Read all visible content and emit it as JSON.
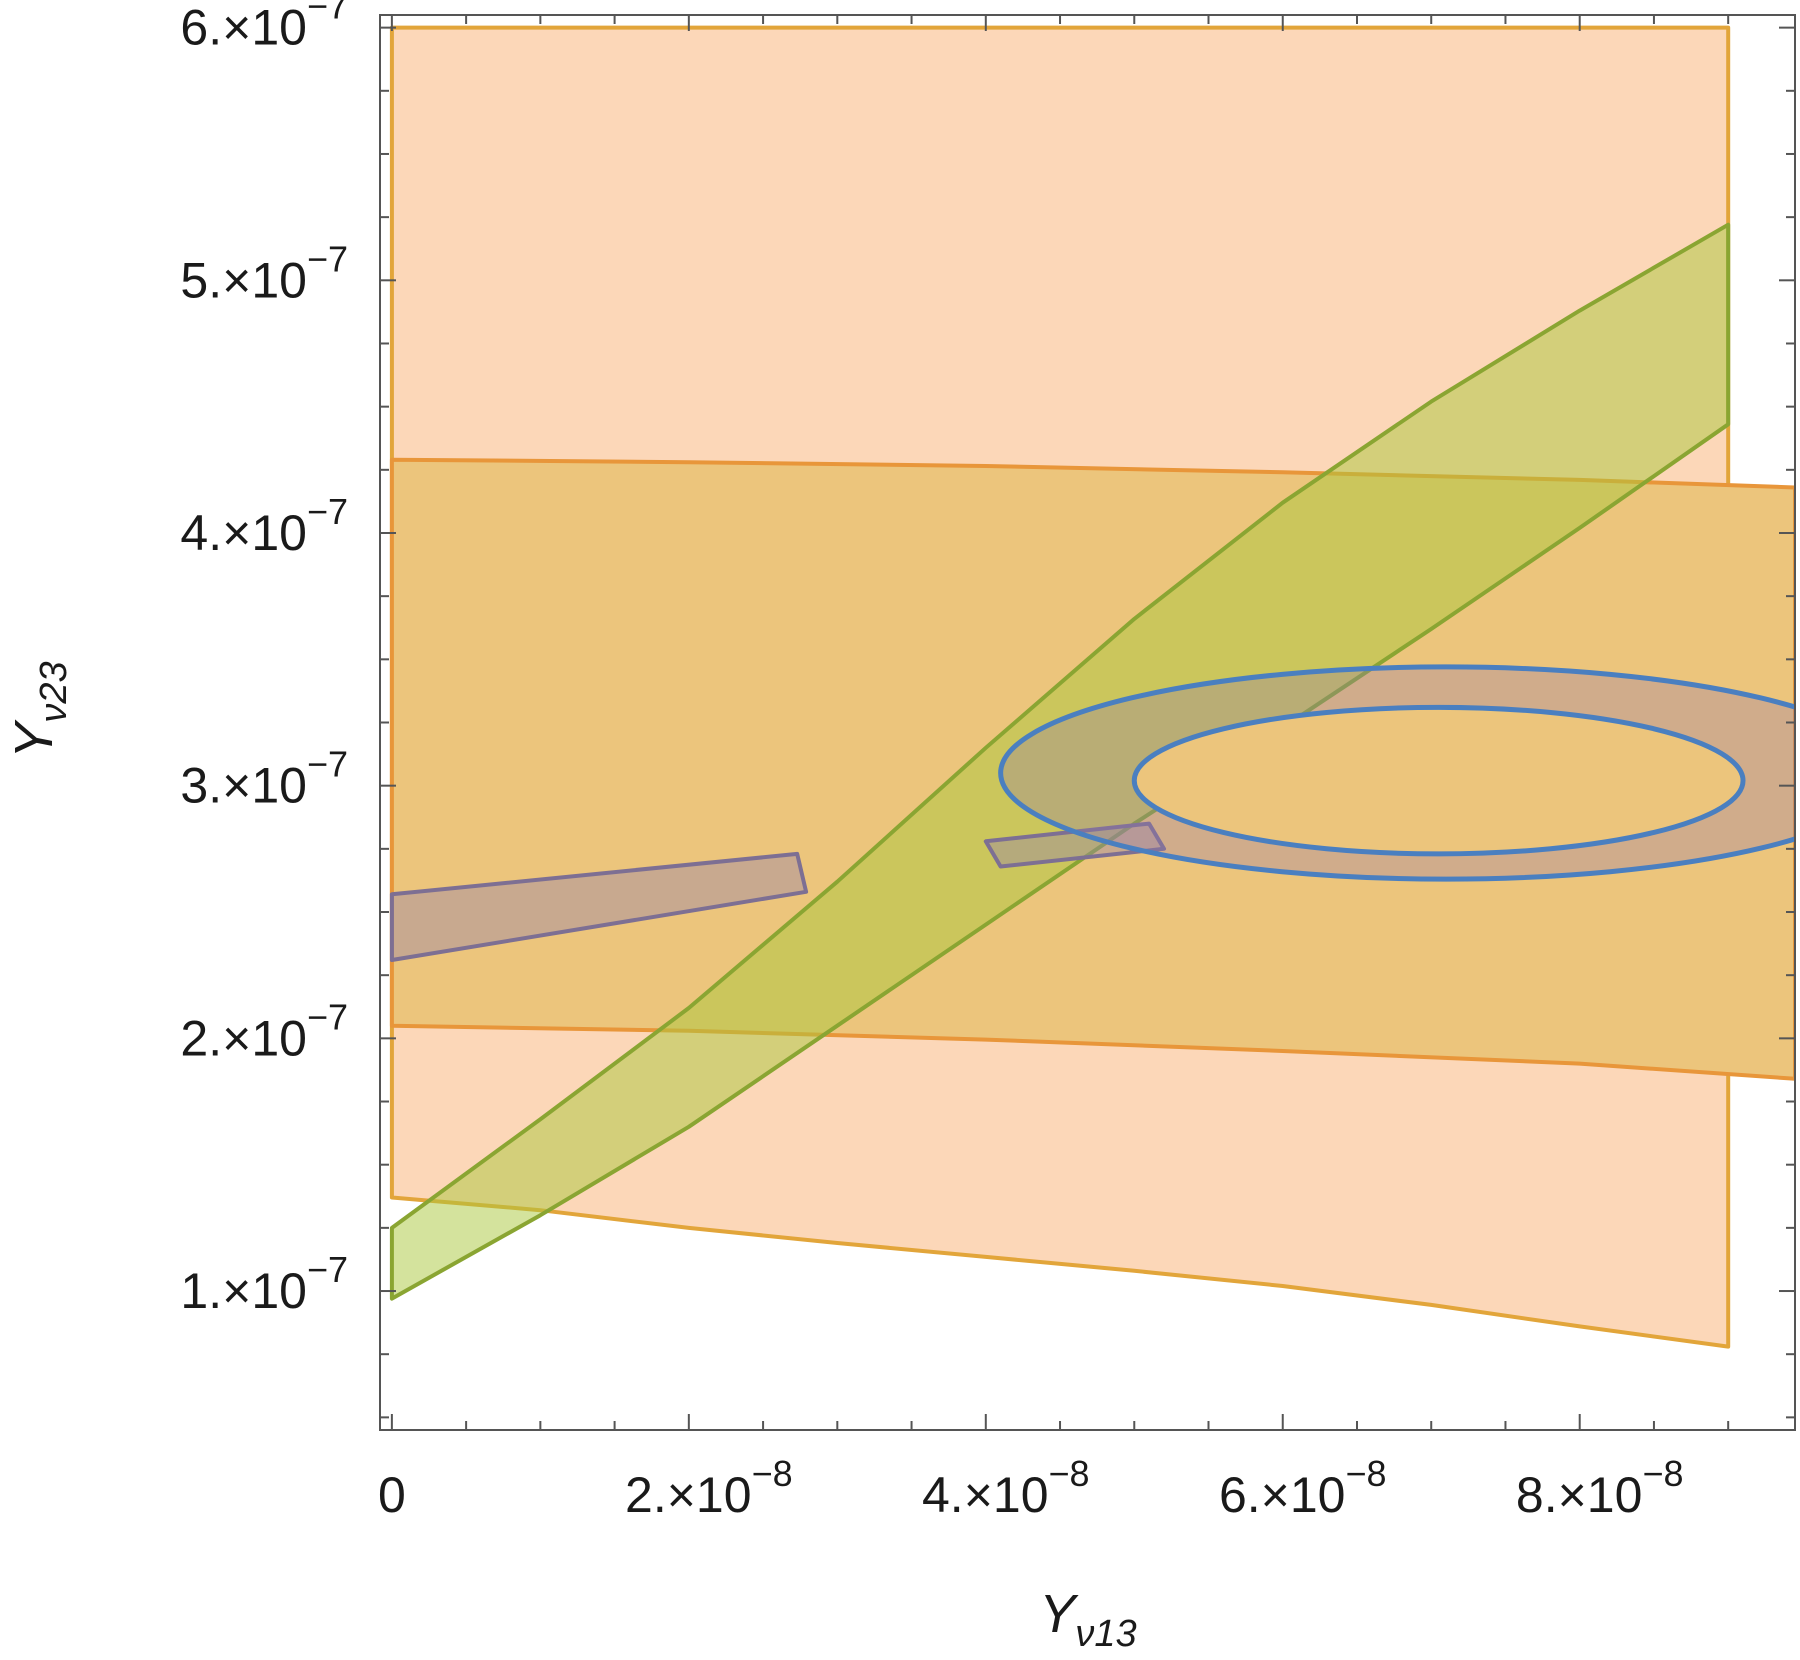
{
  "chart_data": {
    "type": "area",
    "title": "",
    "xlabel": {
      "main": "Y",
      "sub": "ν13"
    },
    "ylabel": {
      "main": "Y",
      "sub": "ν23"
    },
    "xlim": [
      -8e-10,
      9.45e-08
    ],
    "ylim": [
      4.5e-08,
      6.05e-07
    ],
    "grid": false,
    "x_ticks": [
      {
        "value": 0,
        "mantissa": "0",
        "exponent": ""
      },
      {
        "value": 2e-08,
        "mantissa": "2.",
        "exponent": "−8"
      },
      {
        "value": 4e-08,
        "mantissa": "4.",
        "exponent": "−8"
      },
      {
        "value": 6e-08,
        "mantissa": "6.",
        "exponent": "−8"
      },
      {
        "value": 8e-08,
        "mantissa": "8.",
        "exponent": "−8"
      }
    ],
    "y_ticks": [
      {
        "value": 1e-07,
        "mantissa": "1.",
        "exponent": "−7"
      },
      {
        "value": 2e-07,
        "mantissa": "2.",
        "exponent": "−7"
      },
      {
        "value": 3e-07,
        "mantissa": "3.",
        "exponent": "−7"
      },
      {
        "value": 4e-07,
        "mantissa": "4.",
        "exponent": "−7"
      },
      {
        "value": 5e-07,
        "mantissa": "5.",
        "exponent": "−7"
      },
      {
        "value": 6e-07,
        "mantissa": "6.",
        "exponent": "−7"
      }
    ],
    "x_minor_step": 5e-09,
    "y_minor_step": 2.5e-08,
    "regions": [
      {
        "id": "light-orange-region",
        "fill": "#fcd7b8",
        "stroke": "#e2a53a",
        "points": [
          [
            0,
            6e-07
          ],
          [
            9e-08,
            6e-07
          ],
          [
            9e-08,
            7.8e-08
          ],
          [
            8e-08,
            8.6e-08
          ],
          [
            7e-08,
            9.45e-08
          ],
          [
            6e-08,
            1.02e-07
          ],
          [
            5e-08,
            1.08e-07
          ],
          [
            4e-08,
            1.135e-07
          ],
          [
            3e-08,
            1.19e-07
          ],
          [
            2e-08,
            1.25e-07
          ],
          [
            1e-08,
            1.32e-07
          ],
          [
            0,
            1.37e-07
          ]
        ]
      },
      {
        "id": "medium-orange-band",
        "fill": "#ecc57c",
        "stroke": "#e8963a",
        "points": [
          [
            0,
            4.29e-07
          ],
          [
            2e-08,
            4.28e-07
          ],
          [
            4e-08,
            4.265e-07
          ],
          [
            6e-08,
            4.24e-07
          ],
          [
            8e-08,
            4.21e-07
          ],
          [
            9.45e-08,
            4.18e-07
          ],
          [
            9.45e-08,
            1.84e-07
          ],
          [
            8e-08,
            1.9e-07
          ],
          [
            6e-08,
            1.95e-07
          ],
          [
            4e-08,
            1.995e-07
          ],
          [
            2e-08,
            2.03e-07
          ],
          [
            0,
            2.05e-07
          ]
        ]
      },
      {
        "id": "green-band",
        "fill": "rgba(170,200,60,0.5)",
        "stroke": "#8aa532",
        "points": [
          [
            0,
            1.25e-07
          ],
          [
            1e-08,
            1.68e-07
          ],
          [
            2e-08,
            2.12e-07
          ],
          [
            3e-08,
            2.62e-07
          ],
          [
            4e-08,
            3.15e-07
          ],
          [
            5e-08,
            3.66e-07
          ],
          [
            6e-08,
            4.12e-07
          ],
          [
            7e-08,
            4.52e-07
          ],
          [
            8e-08,
            4.88e-07
          ],
          [
            9e-08,
            5.22e-07
          ],
          [
            9e-08,
            4.43e-07
          ],
          [
            8e-08,
            4.02e-07
          ],
          [
            7e-08,
            3.62e-07
          ],
          [
            6e-08,
            3.23e-07
          ],
          [
            5e-08,
            2.85e-07
          ],
          [
            4e-08,
            2.45e-07
          ],
          [
            3e-08,
            2.05e-07
          ],
          [
            2e-08,
            1.65e-07
          ],
          [
            1e-08,
            1.3e-07
          ],
          [
            0,
            9.7e-08
          ]
        ]
      },
      {
        "id": "purple-strip-left",
        "fill": "rgba(150,130,170,0.42)",
        "stroke": "#7d6f93",
        "points": [
          [
            0,
            2.57e-07
          ],
          [
            2.73e-08,
            2.73e-07
          ],
          [
            2.79e-08,
            2.58e-07
          ],
          [
            0,
            2.31e-07
          ]
        ]
      },
      {
        "id": "purple-strip-center",
        "fill": "rgba(150,130,170,0.42)",
        "stroke": "#7d6f93",
        "points": [
          [
            4e-08,
            2.78e-07
          ],
          [
            5.1e-08,
            2.85e-07
          ],
          [
            5.2e-08,
            2.75e-07
          ],
          [
            4.1e-08,
            2.68e-07
          ]
        ]
      }
    ],
    "ellipses": [
      {
        "id": "outer-blue-ellipse",
        "cx": 7.1e-08,
        "cy": 3.05e-07,
        "rx": 3e-08,
        "ry": 4.2e-08,
        "fill": "rgba(150,120,170,0.32)",
        "stroke": "#4a7fc0"
      },
      {
        "id": "inner-blue-ellipse",
        "cx": 7.05e-08,
        "cy": 3.02e-07,
        "rx": 2.05e-08,
        "ry": 2.9e-08,
        "fill": "#ecc57c",
        "stroke": "#4a7fc0"
      }
    ]
  }
}
